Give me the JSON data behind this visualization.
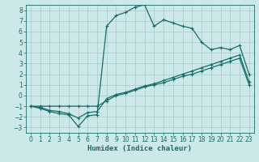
{
  "xlabel": "Humidex (Indice chaleur)",
  "bg_color": "#cce8e8",
  "grid_color": "#aad0d0",
  "line_color": "#1a6b6b",
  "xlim": [
    -0.5,
    23.5
  ],
  "ylim": [
    -3.5,
    8.5
  ],
  "xticks": [
    0,
    1,
    2,
    3,
    4,
    5,
    6,
    7,
    8,
    9,
    10,
    11,
    12,
    13,
    14,
    15,
    16,
    17,
    18,
    19,
    20,
    21,
    22,
    23
  ],
  "yticks": [
    -3,
    -2,
    -1,
    0,
    1,
    2,
    3,
    4,
    5,
    6,
    7,
    8
  ],
  "line1_x": [
    0,
    1,
    2,
    3,
    4,
    5,
    6,
    7,
    8,
    9,
    10,
    11,
    12,
    13,
    14,
    15,
    16,
    17,
    18,
    19,
    20,
    21,
    22,
    23
  ],
  "line1_y": [
    -1.0,
    -1.2,
    -1.5,
    -1.7,
    -1.8,
    -2.9,
    -1.9,
    -1.8,
    6.5,
    7.5,
    7.8,
    8.3,
    8.5,
    6.5,
    7.1,
    6.8,
    6.5,
    6.3,
    5.0,
    4.3,
    4.5,
    4.3,
    4.7,
    2.0
  ],
  "line2_x": [
    0,
    1,
    2,
    3,
    4,
    5,
    6,
    7,
    8,
    9,
    10,
    11,
    12,
    13,
    14,
    15,
    16,
    17,
    18,
    19,
    20,
    21,
    22,
    23
  ],
  "line2_y": [
    -1.0,
    -1.0,
    -1.0,
    -1.0,
    -1.0,
    -1.0,
    -1.0,
    -1.0,
    -0.5,
    0.0,
    0.2,
    0.5,
    0.8,
    1.0,
    1.2,
    1.5,
    1.8,
    2.0,
    2.3,
    2.6,
    2.9,
    3.2,
    3.5,
    1.0
  ],
  "line3_x": [
    0,
    1,
    2,
    3,
    4,
    5,
    6,
    7,
    8,
    9,
    10,
    11,
    12,
    13,
    14,
    15,
    16,
    17,
    18,
    19,
    20,
    21,
    22,
    23
  ],
  "line3_y": [
    -1.0,
    -1.1,
    -1.4,
    -1.5,
    -1.7,
    -2.1,
    -1.6,
    -1.5,
    -0.3,
    0.1,
    0.3,
    0.6,
    0.9,
    1.1,
    1.4,
    1.7,
    2.0,
    2.3,
    2.6,
    2.9,
    3.2,
    3.5,
    3.8,
    1.3
  ],
  "xlabel_fontsize": 6.5,
  "tick_fontsize": 5.5
}
